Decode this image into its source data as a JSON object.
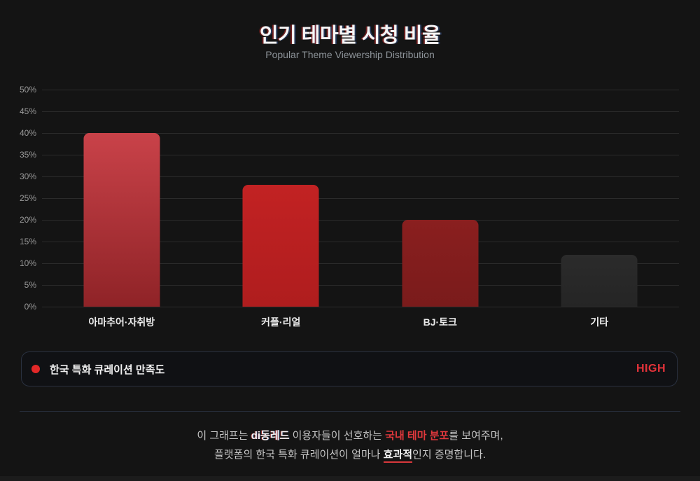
{
  "header": {
    "title": "인기 테마별 시청 비율",
    "subtitle": "Popular Theme Viewership Distribution"
  },
  "chart_data": {
    "type": "bar",
    "title": "인기 테마별 시청 비율",
    "xlabel": "",
    "ylabel": "",
    "categories": [
      "아마추어·자취방",
      "커플·리얼",
      "BJ·토크",
      "기타"
    ],
    "values": [
      40,
      28,
      20,
      12
    ],
    "ylim": [
      0,
      50
    ],
    "ytick_step": 5,
    "ytick_labels": [
      "0%",
      "5%",
      "10%",
      "15%",
      "20%",
      "25%",
      "30%",
      "35%",
      "40%",
      "45%",
      "50%"
    ],
    "grid": true,
    "legend_position": "bottom",
    "bar_colors": [
      {
        "top": "#c94249",
        "bottom": "#8f2327"
      },
      {
        "top": "#c22223",
        "bottom": "#af1d1e"
      },
      {
        "top": "#8a1f1f",
        "bottom": "#7a1b1b"
      },
      {
        "top": "#2b2b2b",
        "bottom": "#252525"
      }
    ]
  },
  "legend": {
    "dot_color": "#e22828",
    "label": "한국 특화 큐레이션 만족도",
    "value": "HIGH",
    "value_color": "#e5333a"
  },
  "footer": {
    "line1": [
      {
        "text": "이 그래프는 "
      },
      {
        "text": "di동레드"
      },
      {
        "text": " 이용자들이 선호하는 "
      },
      {
        "text": "국내 테마 분포"
      },
      {
        "text": "를 보여주며,"
      }
    ],
    "line2": [
      {
        "text": "플랫폼의 한국 특화 큐레이션이 얼마나 "
      },
      {
        "text": "효과적"
      },
      {
        "text": "인지 증명합니다."
      }
    ]
  },
  "colors": {
    "background": "#141414",
    "accent_red": "#e22828",
    "gridline": "#2b2b2b",
    "legend_border": "#2a3140"
  }
}
